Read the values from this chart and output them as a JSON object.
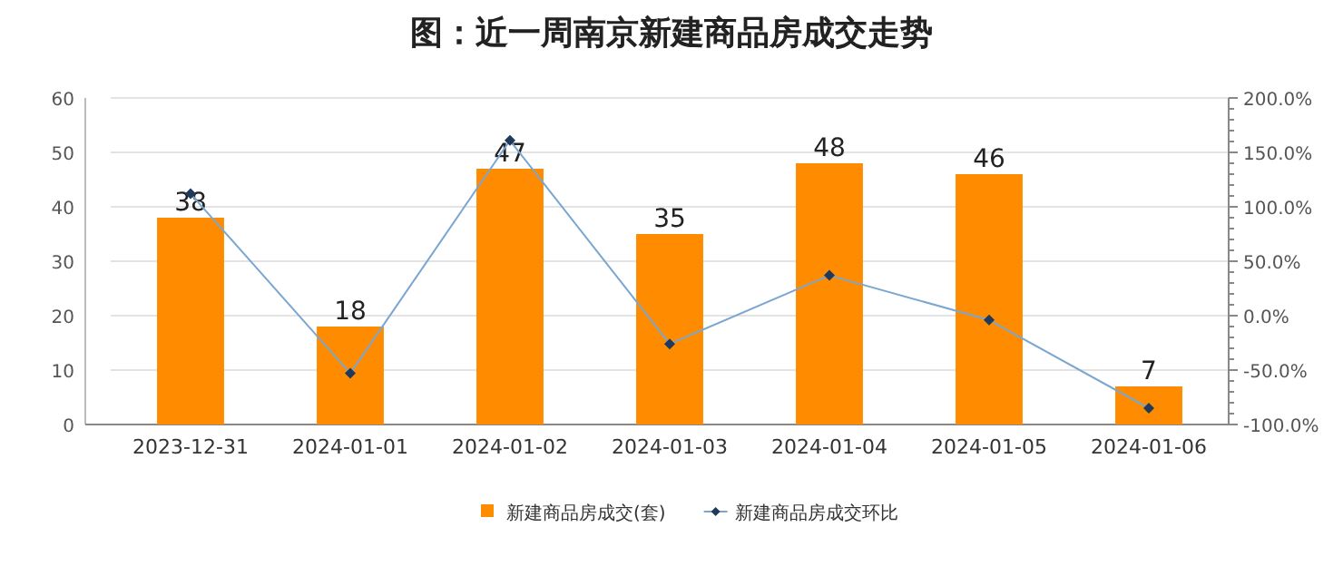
{
  "chart_data": {
    "type": "bar",
    "title": "图：近一周南京新建商品房成交走势",
    "categories": [
      "2023-12-31",
      "2024-01-01",
      "2024-01-02",
      "2024-01-03",
      "2024-01-04",
      "2024-01-05",
      "2024-01-06"
    ],
    "series": [
      {
        "name": "新建商品房成交(套)",
        "color": "#ff8c00",
        "values": [
          38,
          18,
          47,
          35,
          48,
          46,
          7
        ],
        "value_labels": [
          "38",
          "18",
          "47",
          "35",
          "48",
          "46",
          "7"
        ]
      },
      {
        "name": "新建商品房成交环比",
        "color": "#7aa6d0",
        "values": [
          112,
          -53,
          161,
          -26,
          37,
          -4,
          -85
        ],
        "type": "line",
        "axis": "y2",
        "marker": "diamond"
      }
    ],
    "ylim": [
      0,
      60
    ],
    "yticks": [
      0,
      10,
      20,
      30,
      40,
      50,
      60
    ],
    "y2lim": [
      -100,
      200
    ],
    "y2ticks": [
      {
        "value": -100,
        "label": "-100.0%"
      },
      {
        "value": -90,
        "label": null
      },
      {
        "value": -80,
        "label": null
      },
      {
        "value": -70,
        "label": null
      },
      {
        "value": -60,
        "label": null
      },
      {
        "value": -50,
        "label": "-50.0%"
      },
      {
        "value": -40,
        "label": null
      },
      {
        "value": -30,
        "label": null
      },
      {
        "value": -20,
        "label": null
      },
      {
        "value": -10,
        "label": null
      },
      {
        "value": 0,
        "label": "0.0%"
      },
      {
        "value": 10,
        "label": null
      },
      {
        "value": 20,
        "label": null
      },
      {
        "value": 30,
        "label": null
      },
      {
        "value": 40,
        "label": null
      },
      {
        "value": 50,
        "label": "50.0%"
      },
      {
        "value": 60,
        "label": null
      },
      {
        "value": 70,
        "label": null
      },
      {
        "value": 80,
        "label": null
      },
      {
        "value": 90,
        "label": null
      },
      {
        "value": 100,
        "label": "100.0%"
      },
      {
        "value": 110,
        "label": null
      },
      {
        "value": 120,
        "label": null
      },
      {
        "value": 130,
        "label": null
      },
      {
        "value": 140,
        "label": null
      },
      {
        "value": 150,
        "label": "150.0%"
      },
      {
        "value": 160,
        "label": null
      },
      {
        "value": 170,
        "label": null
      },
      {
        "value": 180,
        "label": null
      },
      {
        "value": 190,
        "label": null
      },
      {
        "value": 200,
        "label": "200.0%"
      }
    ],
    "grid": "y",
    "legend": "bottom"
  }
}
